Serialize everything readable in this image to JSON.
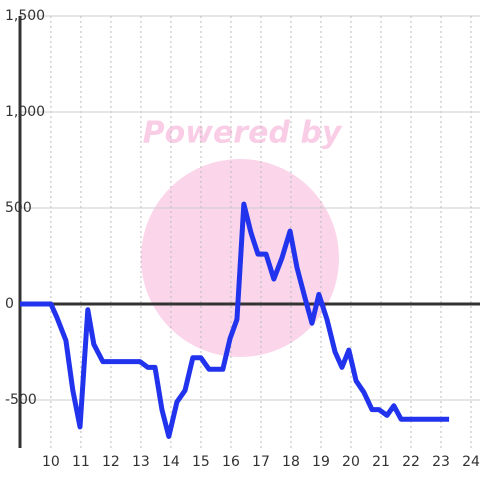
{
  "chart_data": {
    "type": "line",
    "watermark": "Powered by",
    "x": [
      8.97,
      10,
      10.2,
      10.5,
      10.73,
      10.97,
      11.23,
      11.43,
      11.73,
      12.97,
      13.23,
      13.47,
      13.7,
      13.93,
      14.2,
      14.47,
      14.73,
      15,
      15.27,
      15.73,
      15.97,
      16.2,
      16.43,
      16.67,
      16.9,
      17.17,
      17.43,
      17.7,
      17.97,
      18.2,
      18.47,
      18.7,
      18.93,
      19.2,
      19.47,
      19.7,
      19.93,
      20.17,
      20.43,
      20.7,
      20.93,
      21.2,
      21.43,
      21.67,
      23.27
    ],
    "series": [
      {
        "color": "#2233ee",
        "values": [
          0,
          0,
          -70,
          -190,
          -450,
          -640,
          -30,
          -210,
          -300,
          -300,
          -330,
          -330,
          -550,
          -690,
          -510,
          -450,
          -280,
          -280,
          -340,
          -340,
          -180,
          -80,
          520,
          370,
          260,
          260,
          130,
          240,
          380,
          190,
          30,
          -100,
          50,
          -80,
          -250,
          -330,
          -240,
          -400,
          -460,
          -550,
          -550,
          -580,
          -530,
          -600,
          -600
        ]
      }
    ],
    "xlim": [
      8.97,
      24.3
    ],
    "xticks": [
      10,
      11,
      12,
      13,
      14,
      15,
      16,
      17,
      18,
      19,
      20,
      21,
      22,
      23,
      24
    ],
    "ylim": [
      -750,
      1500
    ],
    "yticks": [
      -500,
      0,
      500,
      {
        "value": 1000,
        "label": "1,000"
      },
      {
        "value": 1500,
        "label": "1,500"
      }
    ],
    "grid": true
  }
}
